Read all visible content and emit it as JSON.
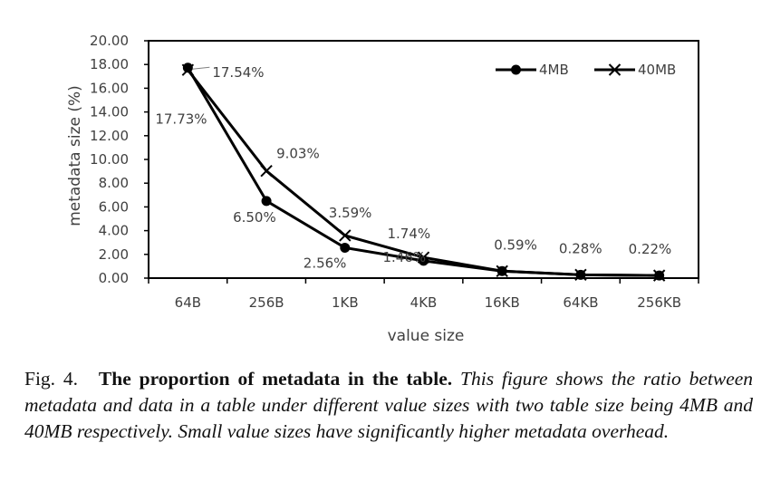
{
  "chart_data": {
    "type": "line",
    "categories": [
      "64B",
      "256B",
      "1KB",
      "4KB",
      "16KB",
      "64KB",
      "256KB"
    ],
    "series": [
      {
        "name": "4MB",
        "marker": "circle",
        "values": [
          17.73,
          6.5,
          2.56,
          1.46,
          0.59,
          0.28,
          0.22
        ],
        "labels": [
          "17.73%",
          "6.50%",
          "2.56%",
          "1.46%",
          "",
          "",
          ""
        ]
      },
      {
        "name": "40MB",
        "marker": "x",
        "values": [
          17.54,
          9.03,
          3.59,
          1.74,
          0.59,
          0.28,
          0.22
        ],
        "labels": [
          "17.54%",
          "9.03%",
          "3.59%",
          "1.74%",
          "0.59%",
          "0.28%",
          "0.22%"
        ]
      }
    ],
    "xlabel": "value size",
    "ylabel": "metadata size (%)",
    "ylim": [
      0,
      20
    ],
    "yticks": [
      "0.00",
      "2.00",
      "4.00",
      "6.00",
      "8.00",
      "10.00",
      "12.00",
      "14.00",
      "16.00",
      "18.00",
      "20.00"
    ],
    "grid": false,
    "legend_position": "top-right",
    "line_color": "#000000"
  },
  "caption": {
    "figure_number": "Fig. 4.",
    "title": "The proportion of metadata in the table.",
    "text": "This figure shows the ratio between metadata and data in a table under different value sizes with two table size being 4MB and 40MB respectively. Small value sizes have significantly higher metadata overhead."
  }
}
